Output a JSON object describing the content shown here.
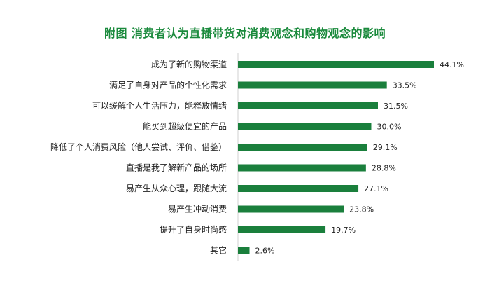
{
  "chart_data": {
    "type": "bar",
    "orientation": "horizontal",
    "title": "附图 消费者认为直播带货对消费观念和购物观念的影响",
    "categories": [
      "成为了新的购物渠道",
      "满足了自身对产品的个性化需求",
      "可以缓解个人生活压力，能释放情绪",
      "能买到超级便宜的产品",
      "降低了个人消费风险（他人尝试、评价、借鉴）",
      "直播是我了解新产品的场所",
      "易产生从众心理，跟随大流",
      "易产生冲动消费",
      "提升了自身时尚感",
      "其它"
    ],
    "values": [
      44.1,
      33.5,
      31.5,
      30.0,
      29.1,
      28.8,
      27.1,
      23.8,
      19.7,
      2.6
    ],
    "value_labels": [
      "44.1%",
      "33.5%",
      "31.5%",
      "30.0%",
      "29.1%",
      "28.8%",
      "27.1%",
      "23.8%",
      "19.7%",
      "2.6%"
    ],
    "unit": "%",
    "xlim": [
      0,
      44.1
    ],
    "grid": false,
    "legend": "none",
    "colors": {
      "bar": "#1a7f3c",
      "title": "#1a8a3c",
      "axis": "#d0d0d0"
    }
  }
}
